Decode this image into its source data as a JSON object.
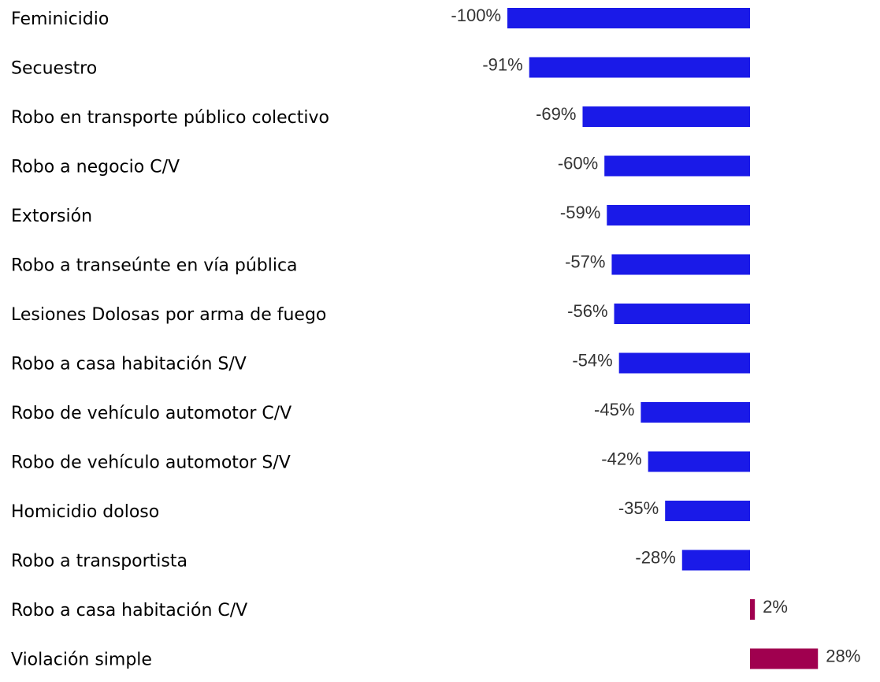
{
  "chart_data": {
    "type": "barh",
    "categories": [
      "Feminicidio",
      "Secuestro",
      "Robo en transporte público colectivo",
      "Robo a negocio C/V",
      "Extorsión",
      "Robo a transeúnte en vía pública",
      "Lesiones Dolosas por arma de fuego",
      "Robo a casa habitación S/V",
      "Robo de vehículo automotor C/V",
      "Robo de vehículo automotor S/V",
      "Homicidio doloso",
      "Robo a transportista",
      "Robo a casa habitación C/V",
      "Violación simple"
    ],
    "values": [
      -100,
      -91,
      -69,
      -60,
      -59,
      -57,
      -56,
      -54,
      -45,
      -42,
      -35,
      -28,
      2,
      28
    ],
    "value_labels": [
      "-100%",
      "-91%",
      "-69%",
      "-60%",
      "-59%",
      "-57%",
      "-56%",
      "-54%",
      "-45%",
      "-42%",
      "-35%",
      "-28%",
      "2%",
      "28%"
    ],
    "colors": [
      "#1a1ae8",
      "#1a1ae8",
      "#1a1ae8",
      "#1a1ae8",
      "#1a1ae8",
      "#1a1ae8",
      "#1a1ae8",
      "#1a1ae8",
      "#1a1ae8",
      "#1a1ae8",
      "#1a1ae8",
      "#1a1ae8",
      "#a0004f",
      "#a0004f"
    ]
  }
}
